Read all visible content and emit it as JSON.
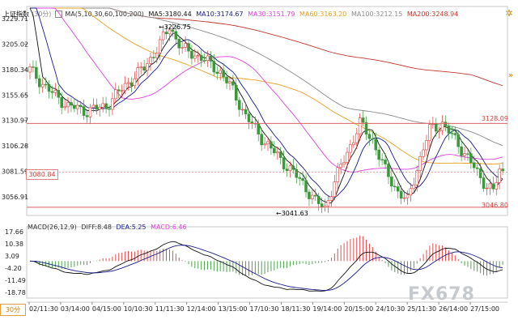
{
  "legend": {
    "title": "上证指数",
    "period": "(30分)",
    "ma_label": "MA(5,10,30,60,100,200)",
    "ma5": "MA5:3180.44",
    "ma10": "MA10:3174.67",
    "ma30": "MA30:3151.79",
    "ma60": "MA60:3163.20",
    "ma100": "MA100:3212.15",
    "ma200": "MA200:3248.94"
  },
  "colors": {
    "ma5": "#111111",
    "ma10": "#1a1a8c",
    "ma30": "#e040e0",
    "ma60": "#e6a020",
    "ma100": "#8a8a8a",
    "ma200": "#c0392b",
    "up": "#e03c3c",
    "down": "#3a9a3a",
    "hline": "#e06060",
    "axis_text": "#222222"
  },
  "price_axis": [
    "3229.71",
    "3205.02",
    "3180.34",
    "3155.65",
    "3130.97",
    "3106.28",
    "3081.59",
    "3056.91"
  ],
  "macd_axis": [
    "17.66",
    "10.38",
    "3.09",
    "-4.20",
    "-11.49",
    "-18.78"
  ],
  "macd_legend": {
    "name": "MACD(26,12,9)",
    "diff": "DIFF:8.48",
    "dea": "DEA:5.25",
    "macd": "MACD:6.46"
  },
  "date_axis": [
    "02/11:30",
    "03/14:00",
    "04/15:00",
    "10/10:30",
    "11/11:30",
    "12/14:00",
    "13/15:00",
    "17/10:30",
    "18/11:30",
    "19/14:00",
    "20/15:00",
    "24/10:30",
    "25/11:30",
    "26/14:00",
    "27/15:00"
  ],
  "annotations": {
    "high": "3226.75",
    "low": "3041.63",
    "level_upper": "3128.09",
    "level_lower": "3046.80",
    "current_price": "3080.84"
  },
  "period_button": "30分",
  "watermark": "FX678",
  "icons": {
    "settings": "gear-icon",
    "nav": "chevron-right-icon"
  }
}
